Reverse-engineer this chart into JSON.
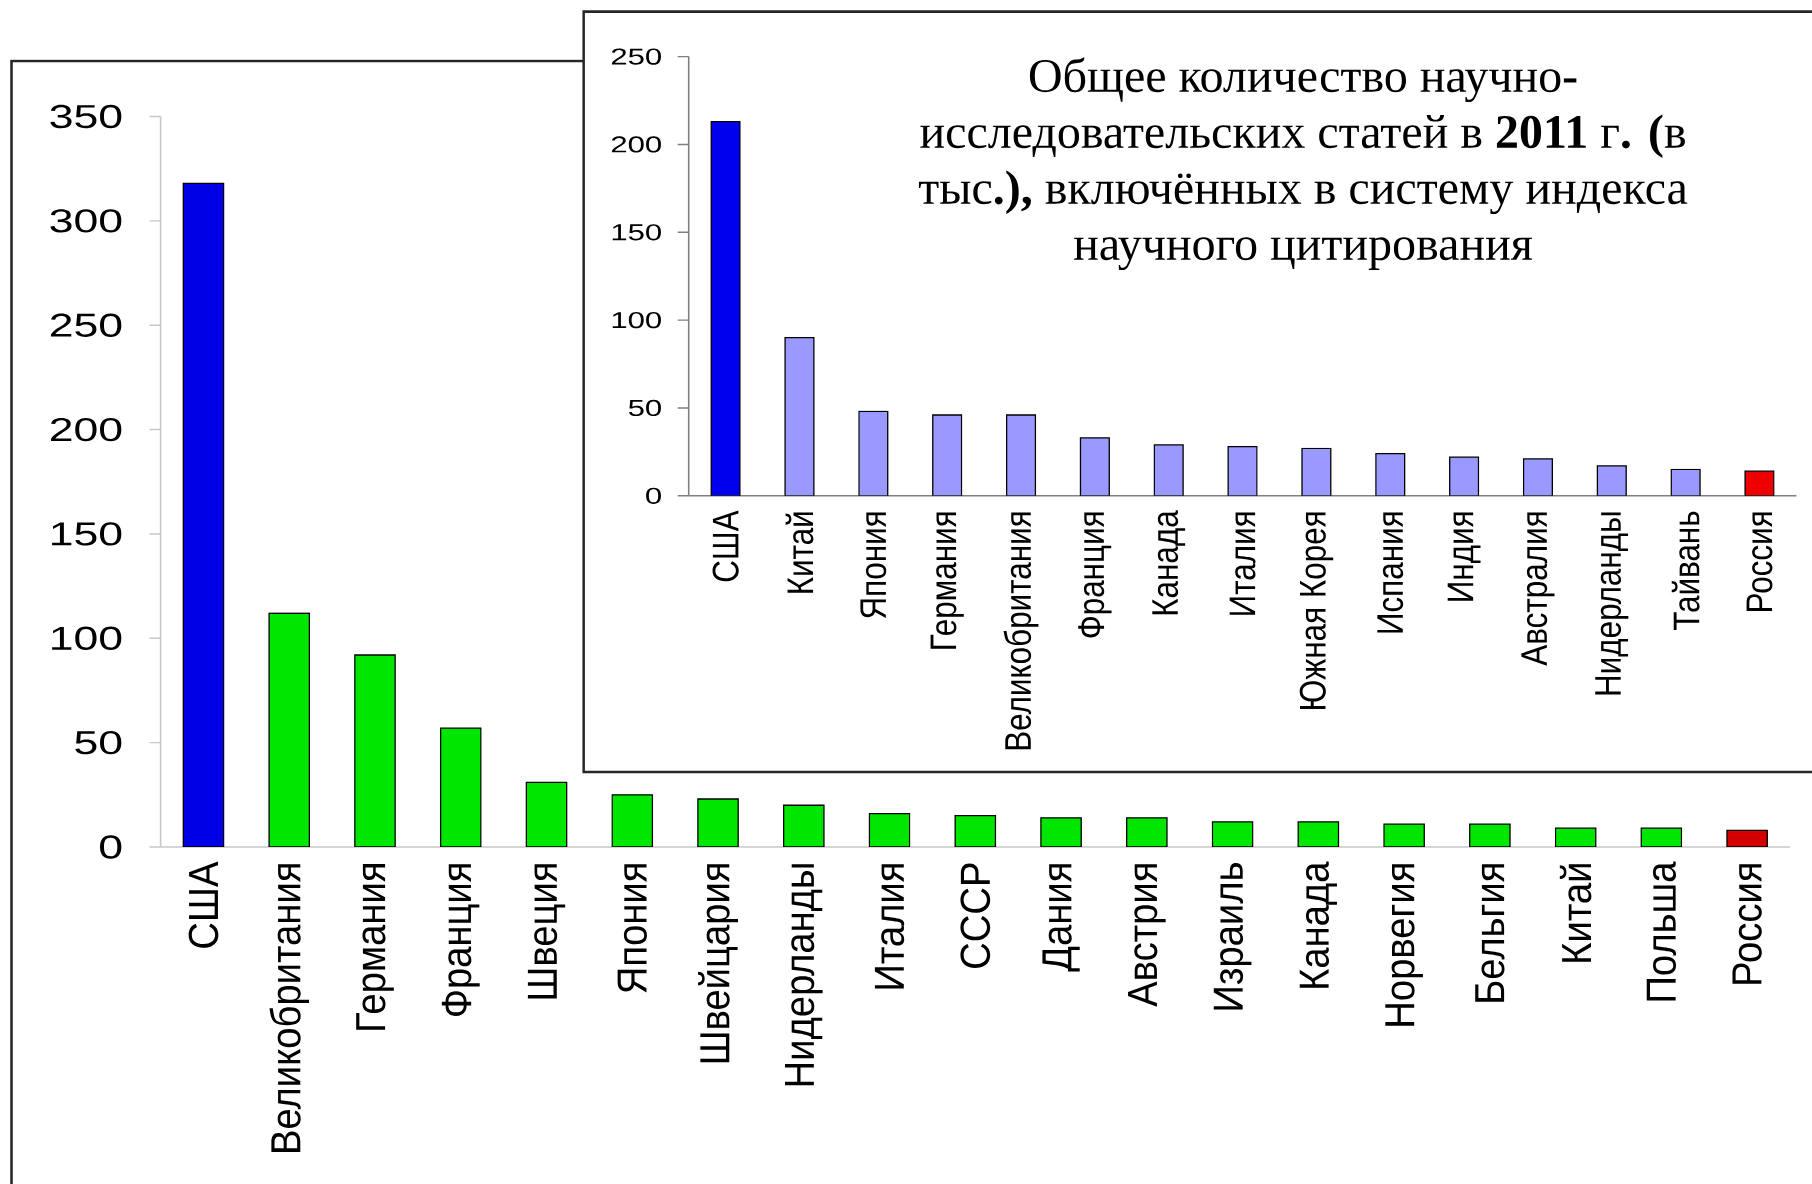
{
  "chart_data": [
    {
      "type": "bar",
      "categories": [
        "США",
        "Великобритания",
        "Германия",
        "Франция",
        "Швеция",
        "Япония",
        "Швейцария",
        "Нидерланды",
        "Италия",
        "СССР",
        "Дания",
        "Австрия",
        "Израиль",
        "Канада",
        "Норвегия",
        "Бельгия",
        "Китай",
        "Польша",
        "Россия"
      ],
      "values": [
        318,
        112,
        92,
        57,
        31,
        25,
        23,
        20,
        16,
        15,
        14,
        14,
        12,
        12,
        11,
        11,
        9,
        9,
        8
      ],
      "colors": [
        "#0000e6",
        "#00e600",
        "#00e600",
        "#00e600",
        "#00e600",
        "#00e600",
        "#00e600",
        "#00e600",
        "#00e600",
        "#00e600",
        "#00e600",
        "#00e600",
        "#00e600",
        "#00e600",
        "#00e600",
        "#00e600",
        "#00e600",
        "#00e600",
        "#d40000"
      ],
      "ylim": [
        0,
        350
      ],
      "yticks": [
        0,
        50,
        100,
        150,
        200,
        250,
        300,
        350
      ]
    },
    {
      "type": "bar",
      "title": "Общее количество научно**-**исследовательских статей в **2011** г**.** **(**в тыс**.),** включённых в систему индекса научного цитирования",
      "categories": [
        "США",
        "Китай",
        "Япония",
        "Германия",
        "Великобритания",
        "Франция",
        "Канада",
        "Италия",
        "Южная Корея",
        "Испания",
        "Индия",
        "Австралия",
        "Нидерланды",
        "Тайвань",
        "Россия"
      ],
      "values": [
        213,
        90,
        48,
        46,
        46,
        33,
        29,
        28,
        27,
        24,
        22,
        21,
        17,
        15,
        14
      ],
      "colors": [
        "#0000ee",
        "#9999ff",
        "#9999ff",
        "#9999ff",
        "#9999ff",
        "#9999ff",
        "#9999ff",
        "#9999ff",
        "#9999ff",
        "#9999ff",
        "#9999ff",
        "#9999ff",
        "#9999ff",
        "#9999ff",
        "#ee0000"
      ],
      "ylim": [
        0,
        250
      ],
      "yticks": [
        0,
        50,
        100,
        150,
        200,
        250
      ]
    }
  ]
}
